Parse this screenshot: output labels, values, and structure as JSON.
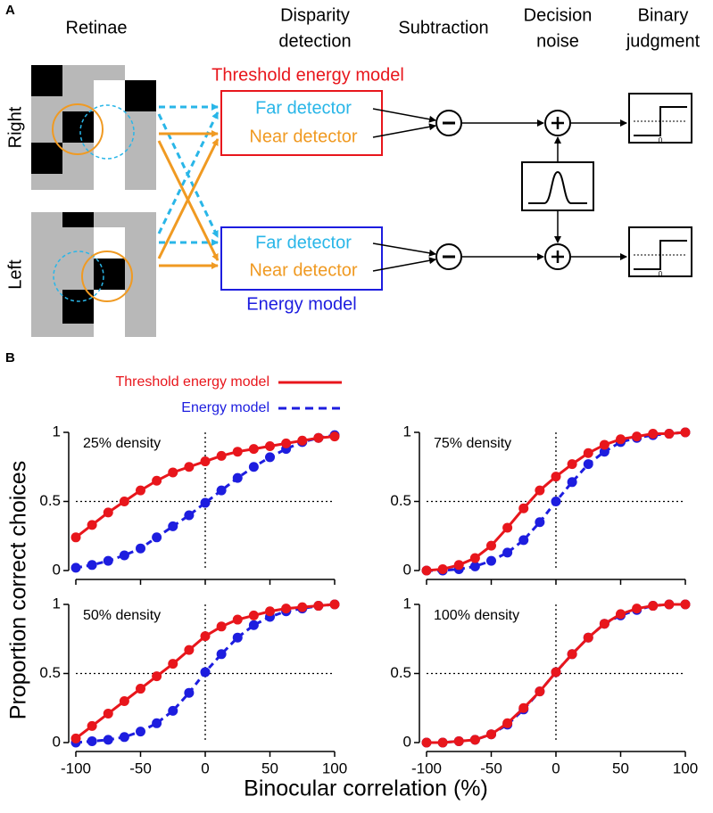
{
  "panel_a": {
    "label": "A",
    "headers": [
      {
        "lines": [
          "Retinae"
        ]
      },
      {
        "lines": [
          "Disparity",
          "detection"
        ]
      },
      {
        "lines": [
          "Subtraction"
        ]
      },
      {
        "lines": [
          "Decision",
          "noise"
        ]
      },
      {
        "lines": [
          "Binary",
          "judgment"
        ]
      }
    ],
    "eyes": [
      "Right",
      "Left"
    ],
    "threshold_model": {
      "name": "Threshold energy model",
      "detectors": [
        "Far detector",
        "Near detector"
      ]
    },
    "energy_model": {
      "name": "Energy model",
      "detectors": [
        "Far detector",
        "Near detector"
      ]
    },
    "step_zero_labels": [
      "0",
      "0"
    ]
  },
  "panel_b": {
    "label": "B",
    "xlabel": "Binocular correlation (%)",
    "ylabel": "Proportion correct choices"
  },
  "chart_data": [
    {
      "type": "line",
      "title": "25% density",
      "x": [
        -100,
        -87.5,
        -75,
        -62.5,
        -50,
        -37.5,
        -25,
        -12.5,
        0,
        12.5,
        25,
        37.5,
        50,
        62.5,
        75,
        87.5,
        100
      ],
      "series": [
        {
          "name": "Threshold energy model",
          "color": "#e8161c",
          "style": "solid",
          "values": [
            0.24,
            0.33,
            0.42,
            0.5,
            0.58,
            0.65,
            0.71,
            0.75,
            0.79,
            0.83,
            0.86,
            0.88,
            0.9,
            0.92,
            0.94,
            0.96,
            0.97
          ]
        },
        {
          "name": "Energy model",
          "color": "#1d1ddf",
          "style": "dashed",
          "values": [
            0.02,
            0.04,
            0.07,
            0.11,
            0.16,
            0.24,
            0.32,
            0.4,
            0.49,
            0.58,
            0.67,
            0.75,
            0.82,
            0.88,
            0.93,
            0.96,
            0.98
          ]
        }
      ],
      "xlim": [
        -100,
        100
      ],
      "ylim": [
        0,
        1
      ],
      "xticks": [
        -100,
        -50,
        0,
        50,
        100
      ],
      "yticks": [
        0,
        0.5,
        1
      ],
      "hline": 0.5,
      "vline": 0,
      "show_xtick_labels": false
    },
    {
      "type": "line",
      "title": "75% density",
      "x": [
        -100,
        -87.5,
        -75,
        -62.5,
        -50,
        -37.5,
        -25,
        -12.5,
        0,
        12.5,
        25,
        37.5,
        50,
        62.5,
        75,
        87.5,
        100
      ],
      "series": [
        {
          "color": "#e8161c",
          "style": "solid",
          "values": [
            0,
            0.01,
            0.04,
            0.09,
            0.18,
            0.31,
            0.45,
            0.58,
            0.68,
            0.77,
            0.85,
            0.91,
            0.95,
            0.97,
            0.99,
            0.99,
            1
          ]
        },
        {
          "color": "#1d1ddf",
          "style": "dashed",
          "values": [
            0,
            0,
            0.01,
            0.03,
            0.07,
            0.13,
            0.22,
            0.35,
            0.5,
            0.64,
            0.77,
            0.86,
            0.93,
            0.96,
            0.98,
            0.99,
            1
          ]
        }
      ],
      "xlim": [
        -100,
        100
      ],
      "ylim": [
        0,
        1
      ],
      "xticks": [
        -100,
        -50,
        0,
        50,
        100
      ],
      "yticks": [
        0,
        0.5,
        1
      ],
      "hline": 0.5,
      "vline": 0,
      "show_xtick_labels": false
    },
    {
      "type": "line",
      "title": "50% density",
      "x": [
        -100,
        -87.5,
        -75,
        -62.5,
        -50,
        -37.5,
        -25,
        -12.5,
        0,
        12.5,
        25,
        37.5,
        50,
        62.5,
        75,
        87.5,
        100
      ],
      "series": [
        {
          "color": "#e8161c",
          "style": "solid",
          "values": [
            0.03,
            0.12,
            0.21,
            0.3,
            0.39,
            0.48,
            0.57,
            0.67,
            0.77,
            0.84,
            0.89,
            0.92,
            0.95,
            0.97,
            0.98,
            0.99,
            1
          ]
        },
        {
          "color": "#1d1ddf",
          "style": "dashed",
          "values": [
            0,
            0.01,
            0.02,
            0.04,
            0.08,
            0.14,
            0.23,
            0.36,
            0.51,
            0.64,
            0.76,
            0.85,
            0.91,
            0.95,
            0.97,
            0.99,
            1
          ]
        }
      ],
      "xlim": [
        -100,
        100
      ],
      "ylim": [
        0,
        1
      ],
      "xticks": [
        -100,
        -50,
        0,
        50,
        100
      ],
      "yticks": [
        0,
        0.5,
        1
      ],
      "hline": 0.5,
      "vline": 0,
      "show_xtick_labels": true
    },
    {
      "type": "line",
      "title": "100% density",
      "x": [
        -100,
        -87.5,
        -75,
        -62.5,
        -50,
        -37.5,
        -25,
        -12.5,
        0,
        12.5,
        25,
        37.5,
        50,
        62.5,
        75,
        87.5,
        100
      ],
      "series": [
        {
          "color": "#e8161c",
          "style": "solid",
          "values": [
            0,
            0,
            0.01,
            0.02,
            0.06,
            0.14,
            0.25,
            0.37,
            0.51,
            0.64,
            0.76,
            0.86,
            0.93,
            0.97,
            0.99,
            1,
            1
          ]
        },
        {
          "color": "#1d1ddf",
          "style": "dashed",
          "values": [
            0,
            0,
            0.01,
            0.02,
            0.06,
            0.13,
            0.24,
            0.37,
            0.51,
            0.64,
            0.76,
            0.86,
            0.92,
            0.96,
            0.99,
            1,
            1
          ]
        }
      ],
      "xlim": [
        -100,
        100
      ],
      "ylim": [
        0,
        1
      ],
      "xticks": [
        -100,
        -50,
        0,
        50,
        100
      ],
      "yticks": [
        0,
        0.5,
        1
      ],
      "hline": 0.5,
      "vline": 0,
      "show_xtick_labels": true
    }
  ]
}
